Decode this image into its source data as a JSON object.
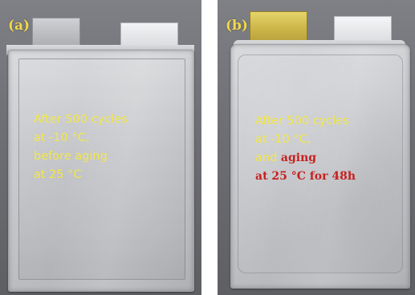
{
  "panel_a": {
    "label": "(a)",
    "caption": {
      "line1": "After 500 cycles",
      "line2": "at -10 °C,",
      "line3": "before aging",
      "line4": "at 25 °C"
    }
  },
  "panel_b": {
    "label": "(b)",
    "caption": {
      "line1": "After 500 cycles",
      "line2": "at -10 °C,",
      "line3_plain": "and ",
      "line3_red": "aging",
      "line4": "at 25 °C for 48h"
    }
  },
  "colors": {
    "label_yellow": "#f1d84a",
    "caption_yellow": "#f2e64b",
    "highlight_red": "#c7201e"
  }
}
